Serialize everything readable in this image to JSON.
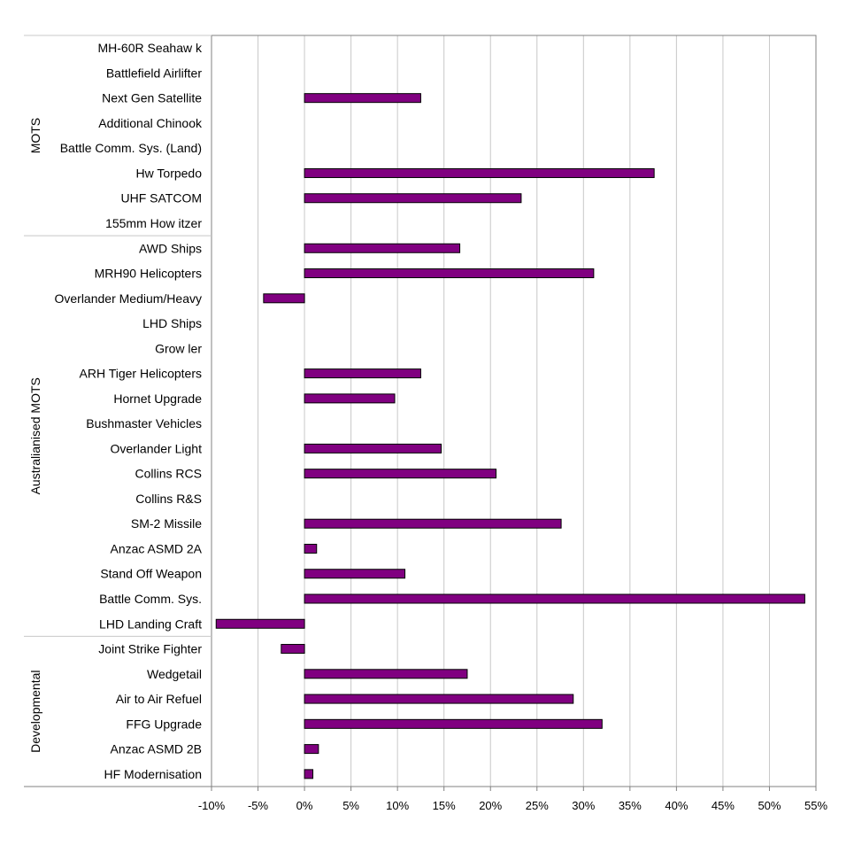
{
  "chart_data": {
    "type": "bar",
    "orientation": "horizontal",
    "bar_color": "#800080",
    "xlim": [
      -10,
      55
    ],
    "x_ticks": [
      -10,
      -5,
      0,
      5,
      10,
      15,
      20,
      25,
      30,
      35,
      40,
      45,
      50,
      55
    ],
    "x_tick_labels": [
      "-10%",
      "-5%",
      "0%",
      "5%",
      "10%",
      "15%",
      "20%",
      "25%",
      "30%",
      "35%",
      "40%",
      "45%",
      "50%",
      "55%"
    ],
    "grid": true,
    "legend": "none",
    "groups": [
      {
        "name": "MOTS",
        "count": 8
      },
      {
        "name": "Australianised MOTS",
        "count": 16
      },
      {
        "name": "Developmental",
        "count": 6
      }
    ],
    "categories": [
      "MH-60R Seahaw k",
      "Battlefield Airlifter",
      "Next Gen Satellite",
      "Additional Chinook",
      "Battle Comm. Sys. (Land)",
      "Hw Torpedo",
      "UHF SATCOM",
      "155mm How itzer",
      "AWD Ships",
      "MRH90 Helicopters",
      "Overlander Medium/Heavy",
      "LHD Ships",
      "Grow ler",
      "ARH Tiger Helicopters",
      "Hornet Upgrade",
      "Bushmaster Vehicles",
      "Overlander Light",
      "Collins RCS",
      "Collins R&S",
      "SM-2 Missile",
      "Anzac ASMD 2A",
      "Stand Off Weapon",
      "Battle Comm. Sys.",
      "LHD Landing Craft",
      "Joint Strike Fighter",
      "Wedgetail",
      "Air to Air Refuel",
      "FFG Upgrade",
      "Anzac ASMD 2B",
      "HF Modernisation"
    ],
    "values": [
      null,
      null,
      12.5,
      null,
      null,
      37.6,
      23.3,
      null,
      16.7,
      31.1,
      -4.4,
      null,
      null,
      12.5,
      9.7,
      null,
      14.7,
      20.6,
      null,
      27.6,
      1.3,
      10.8,
      53.8,
      -9.5,
      -2.5,
      17.5,
      28.9,
      32.0,
      1.5,
      0.9
    ]
  }
}
